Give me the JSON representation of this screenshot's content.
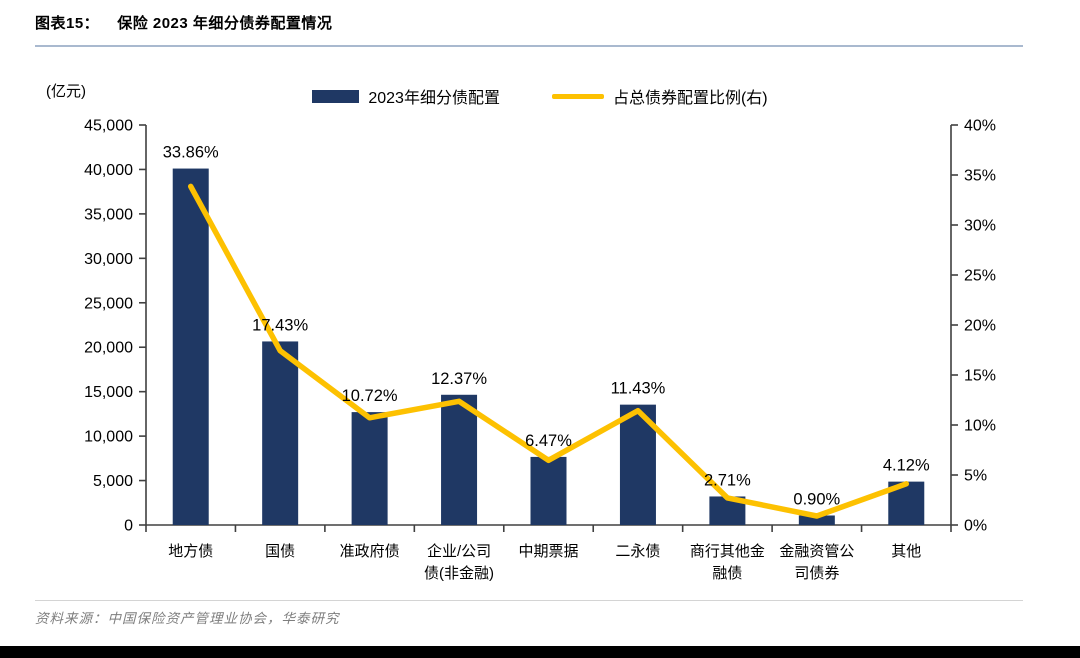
{
  "figure": {
    "label": "图表15：",
    "title": "保险 2023 年细分债券配置情况",
    "source": "资料来源：中国保险资产管理业协会，华泰研究"
  },
  "chart_data": {
    "type": "bar+line",
    "title": "保险2023年细分债券配置情况",
    "unit_label": "(亿元)",
    "legend_position": "top-center",
    "grid": false,
    "categories": [
      "地方债",
      "国债",
      "准政府债",
      "企业/公司债(非金融)",
      "中期票据",
      "二永债",
      "商行其他金融债",
      "金融资管公司债券",
      "其他"
    ],
    "category_tick_lines": [
      [
        "地方债"
      ],
      [
        "国债"
      ],
      [
        "准政府债"
      ],
      [
        "企业/公司",
        "债(非金融)"
      ],
      [
        "中期票据"
      ],
      [
        "二永债"
      ],
      [
        "商行其他金",
        "融债"
      ],
      [
        "金融资管公",
        "司债券"
      ],
      [
        "其他"
      ]
    ],
    "series": [
      {
        "name": "2023年细分债配置",
        "type": "bar",
        "axis": "left",
        "color": "#1f3864",
        "values": [
          40100,
          20650,
          12700,
          14650,
          7660,
          13540,
          3210,
          1070,
          4880
        ]
      },
      {
        "name": "占总债券配置比例(右)",
        "type": "line",
        "axis": "right",
        "color": "#fdc101",
        "values": [
          33.86,
          17.43,
          10.72,
          12.37,
          6.47,
          11.43,
          2.71,
          0.9,
          4.12
        ],
        "point_labels": [
          "33.86%",
          "17.43%",
          "10.72%",
          "12.37%",
          "6.47%",
          "11.43%",
          "2.71%",
          "0.90%",
          "4.12%"
        ]
      }
    ],
    "left_axis": {
      "min": 0,
      "max": 45000,
      "step": 5000
    },
    "right_axis": {
      "min": 0,
      "max": 40,
      "step": 5,
      "suffix": "%"
    }
  },
  "colors": {
    "bar": "#1f3864",
    "line": "#fdc101",
    "axis": "#404040",
    "title_rule": "#a9b9cf",
    "source_rule": "#d4d4d4",
    "source_text": "#7e7e7e",
    "footer_bar": "#000000"
  }
}
